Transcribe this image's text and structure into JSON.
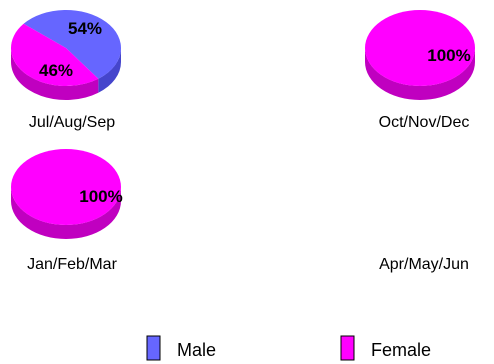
{
  "chart_data": {
    "type": "pie",
    "style": "3d",
    "colors": {
      "Male": "#6666ff",
      "Male_side": "#4545cc",
      "Female": "#ff00ff",
      "Female_side": "#c000c0"
    },
    "legend": {
      "placement": "bottom",
      "entries": [
        "Male",
        "Female"
      ]
    },
    "charts": [
      {
        "label": "Jul/Aug/Sep",
        "slices": [
          {
            "name": "Male",
            "value": 54,
            "label": "54%"
          },
          {
            "name": "Female",
            "value": 46,
            "label": "46%"
          }
        ]
      },
      {
        "label": "Oct/Nov/Dec",
        "slices": [
          {
            "name": "Female",
            "value": 100,
            "label": "100%"
          }
        ]
      },
      {
        "label": "Jan/Feb/Mar",
        "slices": [
          {
            "name": "Female",
            "value": 100,
            "label": "100%"
          }
        ]
      },
      {
        "label": "Apr/May/Jun",
        "slices": []
      }
    ]
  }
}
